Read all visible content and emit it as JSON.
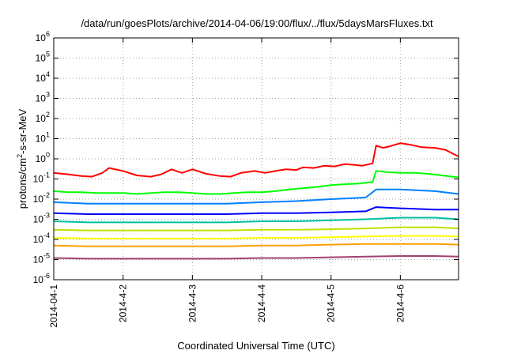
{
  "chart_data": {
    "type": "line",
    "title": "/data/run/goesPlots/archive/2014-04-06/19:00/flux/../flux/5daysMarsFluxes.txt",
    "xlabel": "Coordinated Universal Time (UTC)",
    "ylabel": {
      "prefix": "protons/cm",
      "sup": "2",
      "suffix": "-s-sr-MeV"
    },
    "xlim": [
      0,
      5.84
    ],
    "x_unit": "days since 2014-04-01 00:00 UTC",
    "x_ticks": [
      {
        "value": 0,
        "label": "2014-04-1"
      },
      {
        "value": 1,
        "label": "2014-4-2"
      },
      {
        "value": 2,
        "label": "2014-4-3"
      },
      {
        "value": 3,
        "label": "2014-4-4"
      },
      {
        "value": 4,
        "label": "2014-4-5"
      },
      {
        "value": 5,
        "label": "2014-4-6"
      }
    ],
    "yscale": "log",
    "ylim": [
      1e-06,
      1000000.0
    ],
    "y_ticks": [
      {
        "base": "10",
        "exp": "-6",
        "value": 1e-06
      },
      {
        "base": "10",
        "exp": "-5",
        "value": 1e-05
      },
      {
        "base": "10",
        "exp": "-4",
        "value": 0.0001
      },
      {
        "base": "10",
        "exp": "-3",
        "value": 0.001
      },
      {
        "base": "10",
        "exp": "-2",
        "value": 0.01
      },
      {
        "base": "10",
        "exp": "-1",
        "value": 0.1
      },
      {
        "base": "10",
        "exp": "0",
        "value": 1
      },
      {
        "base": "10",
        "exp": "1",
        "value": 10
      },
      {
        "base": "10",
        "exp": "2",
        "value": 100
      },
      {
        "base": "10",
        "exp": "3",
        "value": 1000
      },
      {
        "base": "10",
        "exp": "4",
        "value": 10000
      },
      {
        "base": "10",
        "exp": "5",
        "value": 100000
      },
      {
        "base": "10",
        "exp": "6",
        "value": 1000000
      }
    ],
    "grid": true,
    "legend": "none",
    "series": [
      {
        "color": "#ff0000",
        "x": [
          0,
          0.2,
          0.4,
          0.55,
          0.7,
          0.8,
          1.0,
          1.2,
          1.4,
          1.55,
          1.7,
          1.85,
          2.0,
          2.2,
          2.4,
          2.55,
          2.7,
          2.9,
          3.05,
          3.2,
          3.35,
          3.5,
          3.6,
          3.75,
          3.9,
          4.05,
          4.2,
          4.35,
          4.45,
          4.6,
          4.65,
          4.75,
          4.85,
          5.0,
          5.15,
          5.3,
          5.5,
          5.65,
          5.84
        ],
        "y": [
          0.2,
          0.17,
          0.14,
          0.13,
          0.2,
          0.35,
          0.25,
          0.15,
          0.13,
          0.17,
          0.3,
          0.2,
          0.3,
          0.18,
          0.14,
          0.13,
          0.2,
          0.25,
          0.2,
          0.25,
          0.3,
          0.28,
          0.38,
          0.35,
          0.45,
          0.42,
          0.55,
          0.5,
          0.45,
          0.6,
          4.5,
          3.5,
          4.2,
          6.0,
          5.0,
          3.8,
          3.5,
          2.8,
          1.3
        ]
      },
      {
        "color": "#00ff00",
        "x": [
          0,
          0.2,
          0.4,
          0.6,
          0.8,
          1.0,
          1.2,
          1.4,
          1.6,
          1.8,
          2.0,
          2.2,
          2.4,
          2.6,
          2.8,
          3.0,
          3.2,
          3.4,
          3.6,
          3.8,
          4.0,
          4.2,
          4.4,
          4.6,
          4.65,
          4.8,
          5.0,
          5.2,
          5.4,
          5.6,
          5.84
        ],
        "y": [
          0.025,
          0.022,
          0.022,
          0.02,
          0.02,
          0.02,
          0.018,
          0.02,
          0.022,
          0.022,
          0.02,
          0.018,
          0.018,
          0.02,
          0.022,
          0.022,
          0.025,
          0.03,
          0.035,
          0.04,
          0.05,
          0.055,
          0.06,
          0.07,
          0.25,
          0.22,
          0.2,
          0.2,
          0.18,
          0.15,
          0.12
        ]
      },
      {
        "color": "#0080ff",
        "x": [
          0,
          0.5,
          1.0,
          1.5,
          2.0,
          2.5,
          3.0,
          3.5,
          4.0,
          4.5,
          4.65,
          5.0,
          5.5,
          5.84
        ],
        "y": [
          0.007,
          0.006,
          0.006,
          0.006,
          0.006,
          0.006,
          0.007,
          0.008,
          0.01,
          0.012,
          0.03,
          0.03,
          0.025,
          0.018
        ]
      },
      {
        "color": "#0000ff",
        "x": [
          0,
          0.5,
          1.0,
          1.5,
          2.0,
          2.5,
          3.0,
          3.5,
          4.0,
          4.5,
          4.65,
          5.0,
          5.5,
          5.84
        ],
        "y": [
          0.002,
          0.0018,
          0.0018,
          0.0018,
          0.0018,
          0.0018,
          0.002,
          0.002,
          0.0022,
          0.0025,
          0.004,
          0.0035,
          0.003,
          0.003
        ]
      },
      {
        "color": "#00c0a0",
        "x": [
          0,
          0.5,
          1.0,
          1.5,
          2.0,
          2.5,
          3.0,
          3.5,
          4.0,
          4.5,
          5.0,
          5.5,
          5.84
        ],
        "y": [
          0.0008,
          0.0007,
          0.0007,
          0.0007,
          0.0007,
          0.0007,
          0.0008,
          0.0008,
          0.0009,
          0.001,
          0.0012,
          0.0012,
          0.001
        ]
      },
      {
        "color": "#c0e000",
        "x": [
          0,
          0.5,
          1.0,
          1.5,
          2.0,
          2.5,
          3.0,
          3.5,
          4.0,
          4.5,
          5.0,
          5.5,
          5.84
        ],
        "y": [
          0.0003,
          0.00028,
          0.00028,
          0.00028,
          0.00028,
          0.00028,
          0.0003,
          0.0003,
          0.00032,
          0.00035,
          0.0004,
          0.0004,
          0.00035
        ]
      },
      {
        "color": "#ffff00",
        "x": [
          0,
          0.5,
          1.0,
          1.5,
          2.0,
          2.5,
          3.0,
          3.5,
          4.0,
          4.5,
          5.0,
          5.5,
          5.84
        ],
        "y": [
          0.00012,
          0.00011,
          0.00011,
          0.00011,
          0.00011,
          0.00011,
          0.00012,
          0.00012,
          0.00013,
          0.00014,
          0.00015,
          0.00015,
          0.00014
        ]
      },
      {
        "color": "#ffa000",
        "x": [
          0,
          0.5,
          1.0,
          1.5,
          2.0,
          2.5,
          3.0,
          3.5,
          4.0,
          4.5,
          5.0,
          5.5,
          5.84
        ],
        "y": [
          5e-05,
          4.5e-05,
          4.5e-05,
          4.5e-05,
          4.5e-05,
          4.5e-05,
          5e-05,
          5e-05,
          5.5e-05,
          6e-05,
          6e-05,
          6e-05,
          5.5e-05
        ]
      },
      {
        "color": "#a04070",
        "x": [
          0,
          0.5,
          1.0,
          1.5,
          2.0,
          2.5,
          3.0,
          3.5,
          4.0,
          4.5,
          5.0,
          5.5,
          5.84
        ],
        "y": [
          1.2e-05,
          1.1e-05,
          1.1e-05,
          1.1e-05,
          1.1e-05,
          1.1e-05,
          1.2e-05,
          1.2e-05,
          1.3e-05,
          1.4e-05,
          1.5e-05,
          1.5e-05,
          1.4e-05
        ]
      }
    ]
  }
}
